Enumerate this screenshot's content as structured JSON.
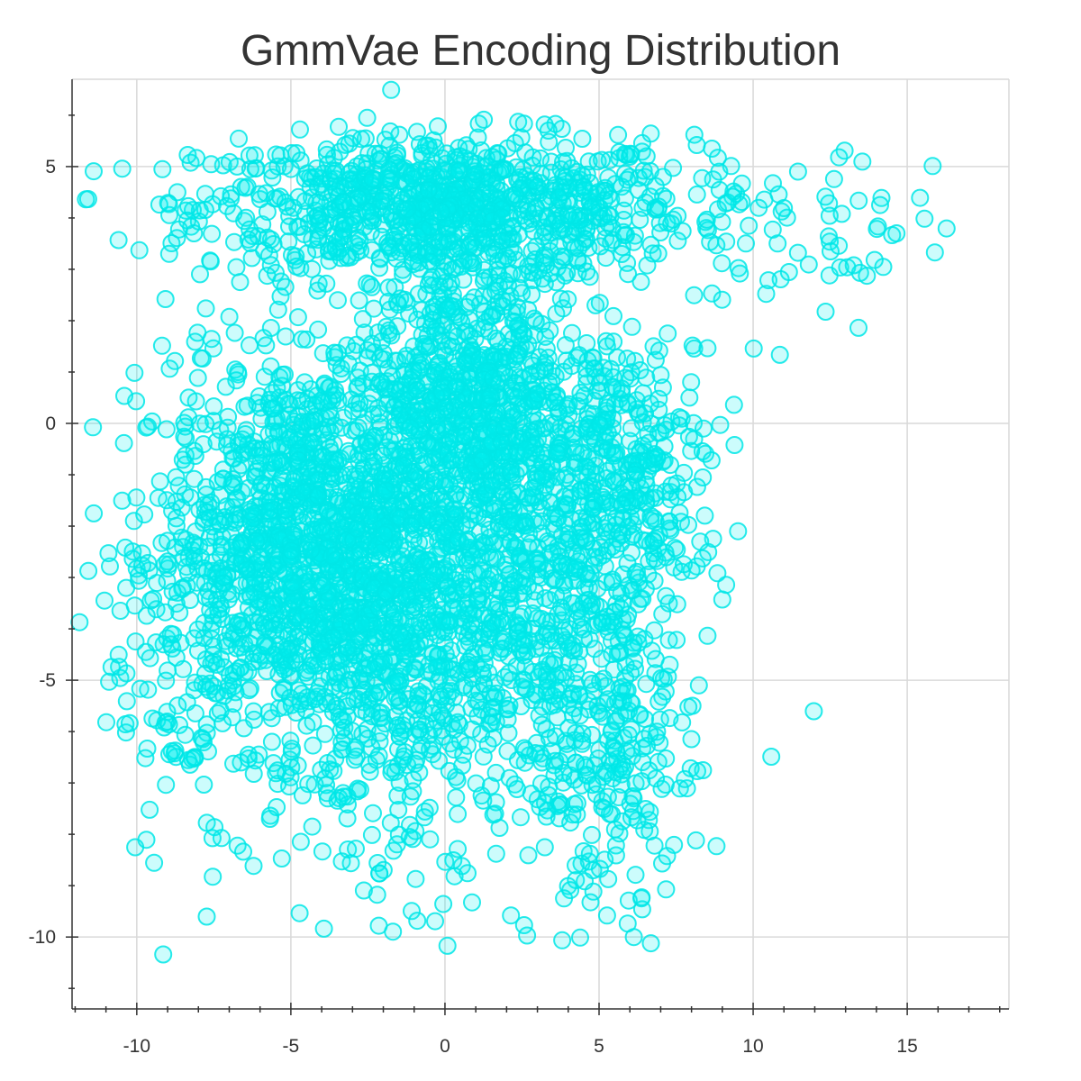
{
  "chart_data": {
    "type": "scatter",
    "title": "GmmVae Encoding Distribution",
    "xlabel": "",
    "ylabel": "",
    "xlim": [
      -12.1,
      18.3
    ],
    "ylim": [
      -11.4,
      6.7
    ],
    "x_ticks": [
      -10,
      -5,
      0,
      5,
      10,
      15
    ],
    "y_ticks": [
      5,
      0,
      -5,
      -10
    ],
    "x_tick_labels": [
      "-10",
      "-5",
      "0",
      "5",
      "10",
      "15"
    ],
    "y_tick_labels": [
      "5",
      "0",
      "-5",
      "-10"
    ],
    "grid": true,
    "legend": "none",
    "point_fill": "#00f0f0",
    "point_stroke": "#00e6e6",
    "clusters": [
      {
        "cx": 0.0,
        "cy": 4.2,
        "sx": 4.0,
        "sy": 0.7,
        "n": 950
      },
      {
        "cx": -4.2,
        "cy": -2.5,
        "sx": 2.4,
        "sy": 1.9,
        "n": 1500
      },
      {
        "cx": 0.8,
        "cy": 0.3,
        "sx": 1.8,
        "sy": 1.5,
        "n": 800
      },
      {
        "cx": 3.4,
        "cy": -3.6,
        "sx": 2.0,
        "sy": 2.2,
        "n": 650
      },
      {
        "cx": -1.5,
        "cy": -5.0,
        "sx": 1.5,
        "sy": 2.0,
        "n": 350
      },
      {
        "cx": 5.8,
        "cy": -0.8,
        "sx": 1.7,
        "sy": 1.3,
        "n": 300
      },
      {
        "cx": -7.8,
        "cy": -4.2,
        "sx": 1.7,
        "sy": 2.2,
        "n": 160
      },
      {
        "cx": 5.6,
        "cy": -7.0,
        "sx": 1.4,
        "sy": 1.5,
        "n": 150
      },
      {
        "cx": 11.2,
        "cy": 3.6,
        "sx": 2.4,
        "sy": 1.0,
        "n": 70
      }
    ]
  }
}
